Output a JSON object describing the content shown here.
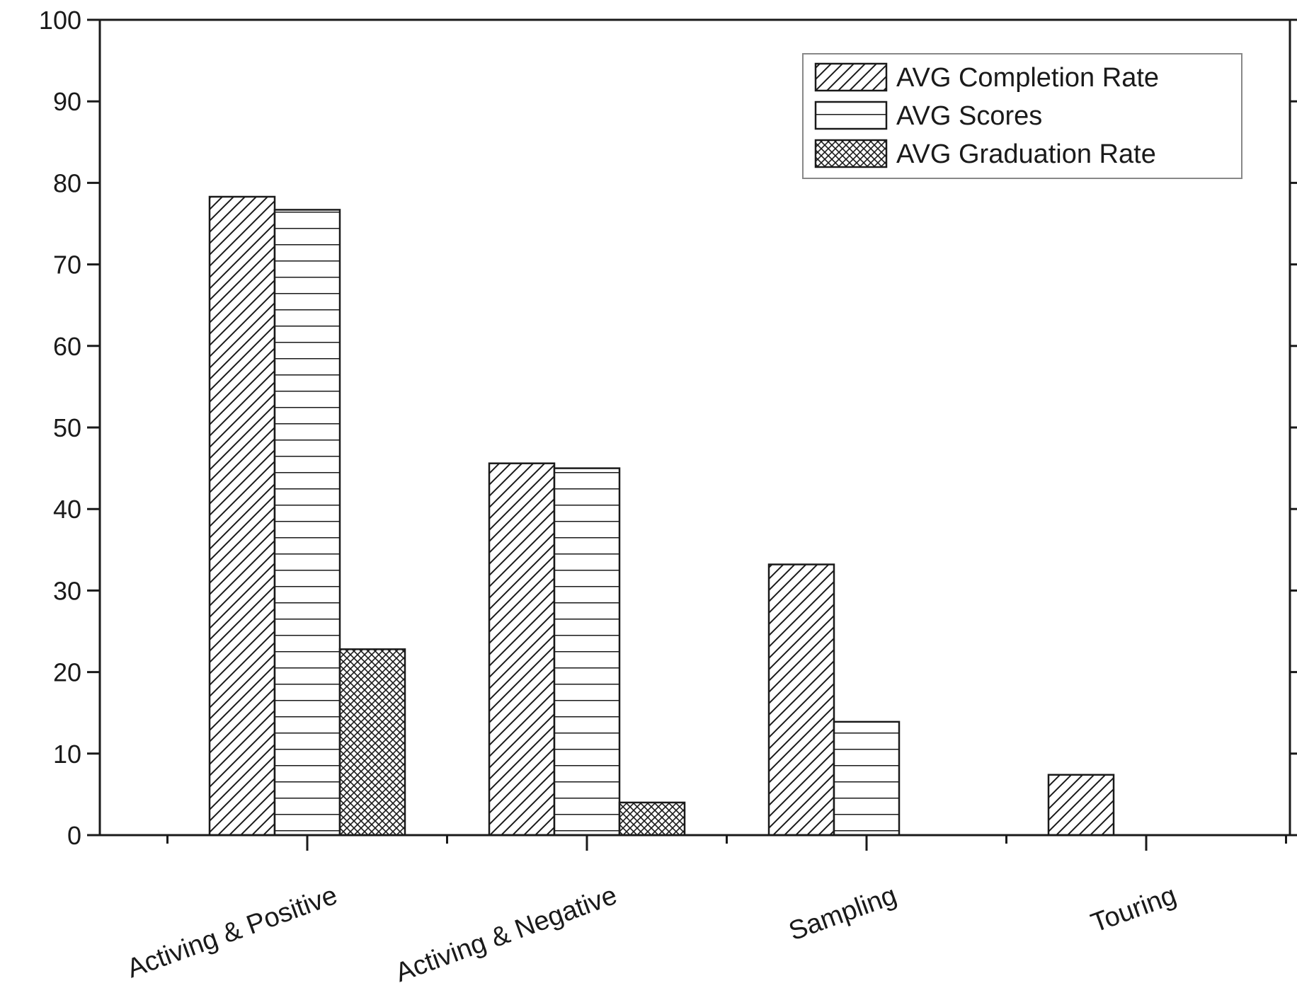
{
  "chart_data": {
    "type": "bar",
    "title": "",
    "xlabel": "",
    "ylabel": "",
    "ylim": [
      0,
      100
    ],
    "yticks": [
      "0",
      "10",
      "20",
      "30",
      "40",
      "50",
      "60",
      "70",
      "80",
      "90",
      "100"
    ],
    "grid": false,
    "legend_position": "top-right",
    "categories": [
      "Activing & Positive",
      "Activing & Negative",
      "Sampling",
      "Touring"
    ],
    "series": [
      {
        "name": "AVG Completion Rate",
        "pattern": "diagonal-hatch",
        "values": [
          78.3,
          45.6,
          33.2,
          7.4
        ]
      },
      {
        "name": "AVG Scores",
        "pattern": "horizontal-lines",
        "values": [
          76.7,
          45.0,
          13.9,
          0
        ]
      },
      {
        "name": "AVG Graduation Rate",
        "pattern": "cross-hatch",
        "values": [
          22.8,
          4.0,
          0,
          0
        ]
      }
    ],
    "colors": {
      "stroke": "#1a1a1a",
      "fill": "#ffffff"
    }
  }
}
